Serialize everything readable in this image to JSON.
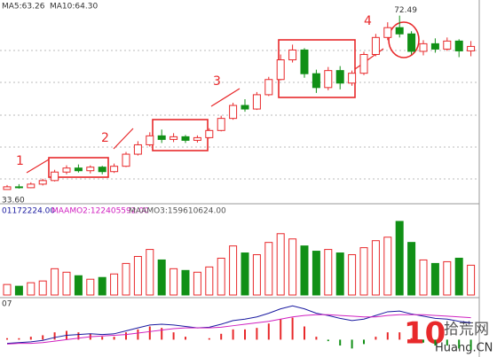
{
  "chart_data": [
    {
      "type": "candlestick",
      "ma_labels": [
        "MA5:63.26",
        "MA10:64.30"
      ],
      "annotations": [
        "1",
        "2",
        "3",
        "4"
      ],
      "high_label": 72.49,
      "low_label": {
        "value": 33.6,
        "label": "33.60"
      },
      "up_color": "#e8292b",
      "down_color": "#119016",
      "ylim": [
        32,
        74
      ],
      "open": [
        33.6,
        34.2,
        34.0,
        34.8,
        35.6,
        37.5,
        38.4,
        37.8,
        38.6,
        37.6,
        38.8,
        41.5,
        43.6,
        45.6,
        44.8,
        45.4,
        44.6,
        45.2,
        46.8,
        49.5,
        52.4,
        51.6,
        54.8,
        58.2,
        62.6,
        64.8,
        59.5,
        56.4,
        60.2,
        57.4,
        59.6,
        63.8,
        67.6,
        69.8,
        68.4,
        64.5,
        66.2,
        65.0,
        66.8,
        64.6
      ],
      "close": [
        34.2,
        34.0,
        34.8,
        35.6,
        37.5,
        38.4,
        37.8,
        38.6,
        37.6,
        38.8,
        41.5,
        43.6,
        45.6,
        44.8,
        45.4,
        44.6,
        45.2,
        46.8,
        49.5,
        52.4,
        51.6,
        54.8,
        58.2,
        62.6,
        64.8,
        59.5,
        56.4,
        60.2,
        57.4,
        59.6,
        63.8,
        67.6,
        69.8,
        68.4,
        64.5,
        66.2,
        65.0,
        66.8,
        64.6,
        65.6
      ],
      "high": [
        34.6,
        34.8,
        35.2,
        36.0,
        38.0,
        39.0,
        39.2,
        39.0,
        38.9,
        39.4,
        42.0,
        44.4,
        46.4,
        47.0,
        46.2,
        45.8,
        45.7,
        47.3,
        50.1,
        53.0,
        53.8,
        55.4,
        58.8,
        63.8,
        66.0,
        65.2,
        60.4,
        61.0,
        61.2,
        60.2,
        64.4,
        68.4,
        71.0,
        72.49,
        69.0,
        67.0,
        67.4,
        67.6,
        67.2,
        66.8
      ],
      "low": [
        33.6,
        33.8,
        33.9,
        34.5,
        35.4,
        37.0,
        37.4,
        37.2,
        37.0,
        37.3,
        38.6,
        41.2,
        43.2,
        44.0,
        44.2,
        44.0,
        44.1,
        45.0,
        46.6,
        49.2,
        51.0,
        51.4,
        54.5,
        58.0,
        62.0,
        58.6,
        55.2,
        55.8,
        56.0,
        56.8,
        59.2,
        63.4,
        67.0,
        67.6,
        63.8,
        63.6,
        64.2,
        64.6,
        63.2,
        63.4
      ]
    },
    {
      "type": "bar",
      "indicator_labels": [
        "01172224.00",
        "MAAMO2:122405592.00",
        "MAAMO3:159610624.00"
      ],
      "ylim": [
        0,
        450000000
      ],
      "values": [
        60000000,
        50000000,
        70000000,
        80000000,
        150000000,
        130000000,
        110000000,
        90000000,
        100000000,
        120000000,
        180000000,
        220000000,
        260000000,
        200000000,
        150000000,
        140000000,
        130000000,
        160000000,
        210000000,
        280000000,
        240000000,
        230000000,
        300000000,
        350000000,
        320000000,
        280000000,
        250000000,
        260000000,
        240000000,
        230000000,
        270000000,
        310000000,
        330000000,
        420000000,
        300000000,
        200000000,
        180000000,
        190000000,
        210000000,
        170000000
      ]
    },
    {
      "type": "macd",
      "indicator_label": "07",
      "ylim": [
        -2,
        5
      ],
      "series": [
        {
          "name": "DIFF",
          "color": "#1a1aa0",
          "values": [
            -0.5,
            -0.4,
            -0.3,
            -0.1,
            0.3,
            0.6,
            0.7,
            0.8,
            0.7,
            0.8,
            1.2,
            1.6,
            2.0,
            2.1,
            2.0,
            1.8,
            1.6,
            1.7,
            2.1,
            2.6,
            2.8,
            3.1,
            3.6,
            4.2,
            4.6,
            4.2,
            3.6,
            3.3,
            2.9,
            2.6,
            2.8,
            3.3,
            3.8,
            3.9,
            3.5,
            3.2,
            2.9,
            2.8,
            2.5,
            2.3
          ]
        },
        {
          "name": "DEA",
          "color": "#d020c0",
          "values": [
            -0.6,
            -0.5,
            -0.5,
            -0.4,
            -0.2,
            0.0,
            0.2,
            0.4,
            0.5,
            0.6,
            0.7,
            0.9,
            1.1,
            1.3,
            1.5,
            1.6,
            1.6,
            1.6,
            1.7,
            1.9,
            2.1,
            2.3,
            2.5,
            2.8,
            3.1,
            3.3,
            3.4,
            3.4,
            3.3,
            3.2,
            3.1,
            3.1,
            3.3,
            3.4,
            3.4,
            3.4,
            3.3,
            3.2,
            3.1,
            3.0
          ]
        }
      ],
      "histogram": [
        0.2,
        0.2,
        0.4,
        0.6,
        1.0,
        1.2,
        1.0,
        0.8,
        0.4,
        0.4,
        1.0,
        1.4,
        1.8,
        1.6,
        1.0,
        0.4,
        0.0,
        0.2,
        0.8,
        1.4,
        1.4,
        1.6,
        2.2,
        2.8,
        3.0,
        1.8,
        0.4,
        -0.2,
        -0.8,
        -1.2,
        -0.6,
        0.4,
        1.0,
        1.0,
        0.2,
        -0.4,
        -0.8,
        -0.8,
        -1.2,
        -1.4
      ]
    }
  ],
  "watermark": {
    "number": "10",
    "name": "拾荒网",
    "site": "Huang.CN"
  }
}
